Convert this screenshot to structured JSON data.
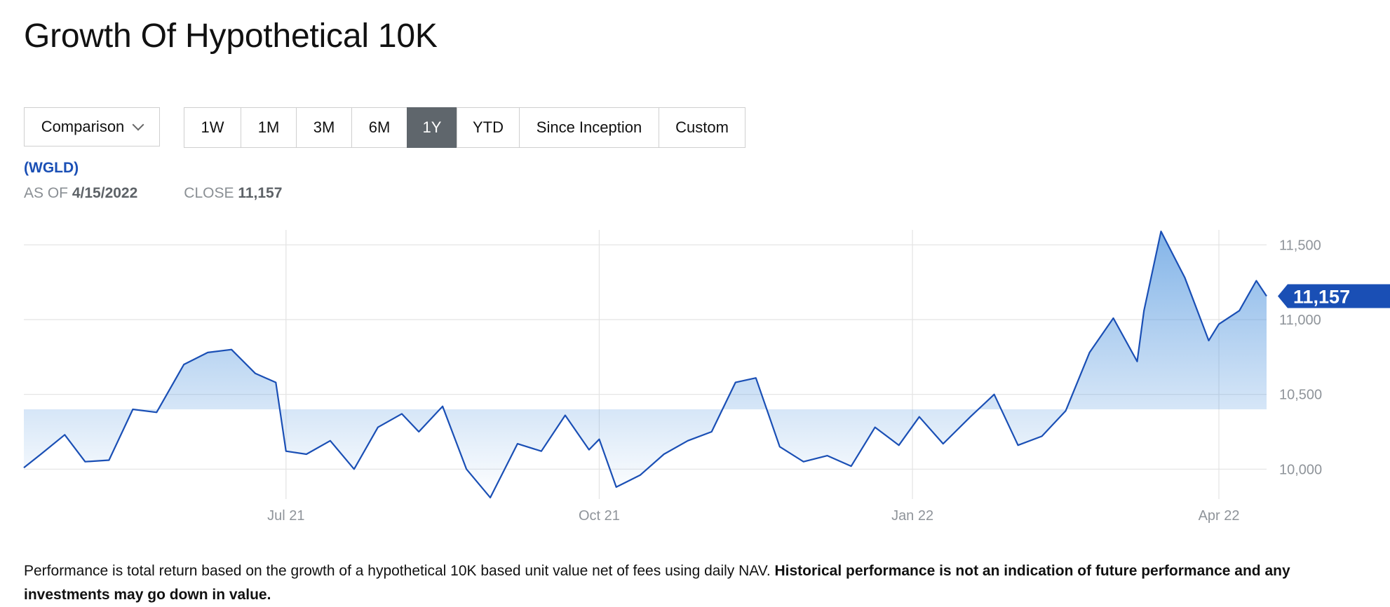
{
  "title": "Growth Of Hypothetical 10K",
  "dropdown": {
    "label": "Comparison",
    "icon": "chevron-down-icon"
  },
  "periods": [
    "1W",
    "1M",
    "3M",
    "6M",
    "1Y",
    "YTD",
    "Since Inception",
    "Custom"
  ],
  "active_period": "1Y",
  "ticker": "(WGLD)",
  "as_of": {
    "label": "AS OF",
    "value": "4/15/2022"
  },
  "close": {
    "label": "CLOSE",
    "value": "11,157"
  },
  "colors": {
    "line": "#1a4fb5",
    "badge": "#1a4fb5",
    "active_button": "#5f666c",
    "grid": "#e3e3e3"
  },
  "footnote": {
    "normal": "Performance is total return based on the growth of a hypothetical 10K based unit value net of fees using daily NAV.",
    "bold": "Historical performance is not an indication of future performance and any investments may go down in value."
  },
  "chart_data": {
    "type": "area",
    "title": "",
    "xlabel": "",
    "ylabel": "",
    "x_ticks": [
      "Jul 21",
      "Oct 21",
      "Jan 22",
      "Apr 22"
    ],
    "y_ticks": [
      "10,000",
      "10,500",
      "11,000",
      "11,500"
    ],
    "y_tick_values": [
      10000,
      10500,
      11000,
      11500
    ],
    "ylim": [
      9800,
      11600
    ],
    "grid": true,
    "last_value_label": "11,157",
    "series": [
      {
        "name": "",
        "x": [
          "2021-04-15",
          "2021-04-20",
          "2021-04-27",
          "2021-05-03",
          "2021-05-10",
          "2021-05-17",
          "2021-05-24",
          "2021-06-01",
          "2021-06-08",
          "2021-06-15",
          "2021-06-22",
          "2021-06-28",
          "2021-07-01",
          "2021-07-07",
          "2021-07-14",
          "2021-07-21",
          "2021-07-28",
          "2021-08-04",
          "2021-08-09",
          "2021-08-16",
          "2021-08-23",
          "2021-08-30",
          "2021-09-07",
          "2021-09-14",
          "2021-09-21",
          "2021-09-28",
          "2021-10-01",
          "2021-10-06",
          "2021-10-13",
          "2021-10-20",
          "2021-10-27",
          "2021-11-03",
          "2021-11-10",
          "2021-11-16",
          "2021-11-23",
          "2021-11-30",
          "2021-12-07",
          "2021-12-14",
          "2021-12-21",
          "2021-12-28",
          "2022-01-03",
          "2022-01-10",
          "2022-01-18",
          "2022-01-25",
          "2022-02-01",
          "2022-02-08",
          "2022-02-15",
          "2022-02-22",
          "2022-03-01",
          "2022-03-08",
          "2022-03-10",
          "2022-03-15",
          "2022-03-22",
          "2022-03-29",
          "2022-04-01",
          "2022-04-07",
          "2022-04-12",
          "2022-04-15"
        ],
        "values": [
          10010,
          10100,
          10230,
          10050,
          10060,
          10400,
          10380,
          10700,
          10780,
          10800,
          10640,
          10580,
          10120,
          10100,
          10190,
          10000,
          10280,
          10370,
          10250,
          10420,
          10000,
          9810,
          10170,
          10120,
          10360,
          10130,
          10200,
          9880,
          9960,
          10100,
          10190,
          10250,
          10580,
          10610,
          10150,
          10050,
          10090,
          10020,
          10280,
          10160,
          10350,
          10170,
          10350,
          10500,
          10160,
          10220,
          10390,
          10780,
          11010,
          10720,
          11060,
          11590,
          11280,
          10860,
          10970,
          11060,
          11260,
          11157
        ]
      }
    ]
  }
}
